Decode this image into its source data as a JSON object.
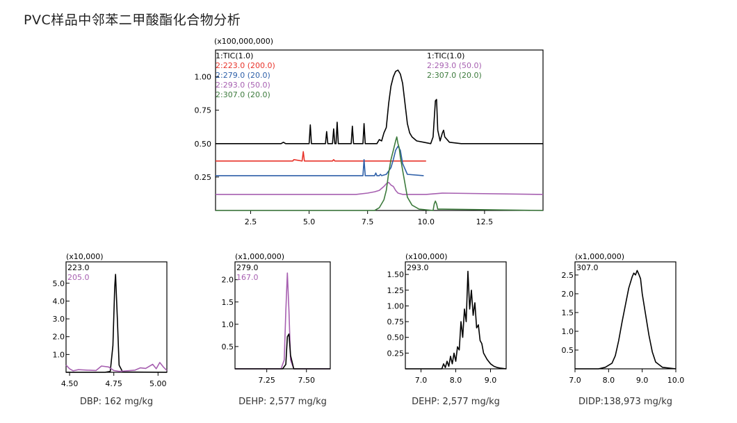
{
  "page_title": "PVC样品中邻苯二甲酸酯化合物分析",
  "colors": {
    "tic": "#000000",
    "m223": "#e8332a",
    "m279": "#2d5fa8",
    "m293": "#a65fb0",
    "m307": "#3c7a3c",
    "m205": "#a65fb0",
    "m167": "#a65fb0"
  },
  "chart_data": [
    {
      "type": "line",
      "id": "main",
      "ylabel_scale": "(x100,000,000)",
      "x_ticks": [
        "2.5",
        "5.0",
        "7.5",
        "10.0",
        "12.5"
      ],
      "y_ticks": [
        "0.25",
        "0.50",
        "0.75",
        "1.00"
      ],
      "xlim": [
        1.0,
        15.0
      ],
      "ylim": [
        0,
        1.2
      ],
      "legend_left": [
        {
          "label": "1:TIC(1.0)",
          "color": "#000000"
        },
        {
          "label": "2:223.0 (200.0)",
          "color": "#e8332a"
        },
        {
          "label": "2:279.0 (20.0)",
          "color": "#2d5fa8"
        },
        {
          "label": "2:293.0 (50.0)",
          "color": "#a65fb0"
        },
        {
          "label": "2:307.0 (20.0)",
          "color": "#3c7a3c"
        }
      ],
      "legend_right": [
        {
          "label": "1:TIC(1.0)",
          "color": "#000000"
        },
        {
          "label": "2:293.0 (50.0)",
          "color": "#a65fb0"
        },
        {
          "label": "2:307.0 (20.0)",
          "color": "#3c7a3c"
        }
      ],
      "series": [
        {
          "name": "1:TIC(1.0)",
          "color": "#000000",
          "x": [
            1.0,
            3.8,
            3.9,
            4.0,
            5.0,
            5.05,
            5.1,
            5.2,
            5.7,
            5.75,
            5.8,
            6.0,
            6.05,
            6.1,
            6.15,
            6.2,
            6.25,
            6.3,
            6.8,
            6.85,
            6.9,
            7.3,
            7.35,
            7.4,
            7.9,
            8.0,
            8.1,
            8.2,
            8.3,
            8.4,
            8.5,
            8.6,
            8.7,
            8.8,
            8.9,
            9.0,
            9.1,
            9.2,
            9.3,
            9.4,
            9.6,
            9.9,
            10.2,
            10.3,
            10.4,
            10.45,
            10.5,
            10.6,
            10.7,
            10.75,
            10.8,
            11.0,
            11.5,
            15.0
          ],
          "y": [
            0.5,
            0.5,
            0.51,
            0.5,
            0.5,
            0.64,
            0.5,
            0.5,
            0.5,
            0.59,
            0.5,
            0.5,
            0.61,
            0.5,
            0.5,
            0.66,
            0.5,
            0.5,
            0.5,
            0.63,
            0.5,
            0.5,
            0.65,
            0.5,
            0.5,
            0.53,
            0.52,
            0.58,
            0.62,
            0.8,
            0.93,
            1.0,
            1.04,
            1.05,
            1.02,
            0.95,
            0.8,
            0.65,
            0.58,
            0.55,
            0.52,
            0.51,
            0.5,
            0.55,
            0.82,
            0.83,
            0.6,
            0.52,
            0.58,
            0.6,
            0.55,
            0.51,
            0.5,
            0.5
          ]
        },
        {
          "name": "2:223.0 (200.0)",
          "color": "#e8332a",
          "x": [
            1.0,
            4.3,
            4.35,
            4.7,
            4.75,
            4.8,
            6.0,
            6.05,
            6.1,
            8.0,
            10.0
          ],
          "y": [
            0.37,
            0.37,
            0.38,
            0.37,
            0.44,
            0.37,
            0.37,
            0.38,
            0.37,
            0.37,
            0.37
          ]
        },
        {
          "name": "2:279.0 (20.0)",
          "color": "#2d5fa8",
          "x": [
            1.0,
            7.3,
            7.35,
            7.4,
            7.8,
            7.85,
            7.9,
            8.0,
            8.05,
            8.1,
            8.3,
            8.5,
            8.6,
            8.7,
            8.8,
            8.9,
            9.0,
            9.2,
            9.9
          ],
          "y": [
            0.26,
            0.26,
            0.38,
            0.26,
            0.26,
            0.28,
            0.26,
            0.26,
            0.27,
            0.26,
            0.27,
            0.32,
            0.38,
            0.45,
            0.48,
            0.45,
            0.35,
            0.27,
            0.26
          ]
        },
        {
          "name": "2:293.0 (50.0)",
          "color": "#a65fb0",
          "x": [
            1.0,
            7.0,
            7.5,
            7.8,
            8.0,
            8.2,
            8.3,
            8.4,
            8.5,
            8.6,
            8.7,
            8.8,
            9.0,
            9.3,
            10.0,
            10.7,
            15.0
          ],
          "y": [
            0.12,
            0.12,
            0.13,
            0.14,
            0.15,
            0.18,
            0.2,
            0.21,
            0.19,
            0.18,
            0.15,
            0.13,
            0.12,
            0.12,
            0.12,
            0.13,
            0.12
          ]
        },
        {
          "name": "2:307.0 (20.0)",
          "color": "#3c7a3c",
          "x": [
            1.0,
            7.8,
            8.0,
            8.2,
            8.3,
            8.4,
            8.5,
            8.6,
            8.7,
            8.75,
            8.8,
            8.85,
            8.9,
            9.0,
            9.1,
            9.2,
            9.4,
            9.7,
            10.3,
            10.35,
            10.4,
            10.45,
            10.5,
            10.7,
            15.0
          ],
          "y": [
            0.0,
            0.0,
            0.02,
            0.08,
            0.15,
            0.28,
            0.38,
            0.45,
            0.52,
            0.55,
            0.5,
            0.47,
            0.4,
            0.3,
            0.2,
            0.1,
            0.04,
            0.01,
            0.0,
            0.05,
            0.07,
            0.05,
            0.01,
            0.01,
            0.0
          ]
        }
      ]
    },
    {
      "type": "line",
      "id": "dbp",
      "ylabel_scale": "(x10,000)",
      "x_ticks": [
        "4.50",
        "4.75",
        "5.00"
      ],
      "y_ticks": [
        "1.0",
        "2.0",
        "3.0",
        "4.0",
        "5.0"
      ],
      "xlim": [
        4.48,
        5.05
      ],
      "ylim": [
        0,
        6.2
      ],
      "legend": [
        {
          "label": "223.0",
          "color": "#000000"
        },
        {
          "label": "205.0",
          "color": "#a65fb0"
        }
      ],
      "caption": "DBP: 162 mg/kg",
      "series": [
        {
          "name": "223.0",
          "color": "#000000",
          "x": [
            4.48,
            4.7,
            4.73,
            4.745,
            4.755,
            4.76,
            4.77,
            4.78,
            4.8,
            5.05
          ],
          "y": [
            0.0,
            0.0,
            0.05,
            1.5,
            4.8,
            5.5,
            3.0,
            0.4,
            0.02,
            0.0
          ]
        },
        {
          "name": "205.0",
          "color": "#a65fb0",
          "x": [
            4.48,
            4.5,
            4.52,
            4.55,
            4.6,
            4.65,
            4.68,
            4.72,
            4.75,
            4.78,
            4.82,
            4.87,
            4.9,
            4.93,
            4.97,
            4.99,
            5.01,
            5.03,
            5.05
          ],
          "y": [
            0.4,
            0.2,
            0.08,
            0.15,
            0.12,
            0.1,
            0.35,
            0.3,
            0.1,
            0.05,
            0.08,
            0.12,
            0.25,
            0.22,
            0.45,
            0.2,
            0.55,
            0.3,
            0.1
          ]
        }
      ]
    },
    {
      "type": "line",
      "id": "dehp1",
      "ylabel_scale": "(x1,000,000)",
      "x_ticks": [
        "7.25",
        "7.50"
      ],
      "y_ticks": [
        "0.5",
        "1.0",
        "1.5",
        "2.0"
      ],
      "xlim": [
        7.05,
        7.65
      ],
      "ylim": [
        0,
        2.4
      ],
      "legend": [
        {
          "label": "279.0",
          "color": "#000000"
        },
        {
          "label": "167.0",
          "color": "#a65fb0"
        }
      ],
      "caption": "DEHP: 2,577 mg/kg",
      "series": [
        {
          "name": "167.0",
          "color": "#a65fb0",
          "x": [
            7.05,
            7.34,
            7.36,
            7.37,
            7.38,
            7.39,
            7.4,
            7.42,
            7.65
          ],
          "y": [
            0.0,
            0.0,
            0.2,
            1.3,
            2.15,
            1.3,
            0.2,
            0.0,
            0.0
          ]
        },
        {
          "name": "279.0",
          "color": "#000000",
          "x": [
            7.05,
            7.35,
            7.37,
            7.38,
            7.39,
            7.4,
            7.42,
            7.65
          ],
          "y": [
            0.0,
            0.0,
            0.1,
            0.72,
            0.78,
            0.3,
            0.0,
            0.0
          ]
        }
      ]
    },
    {
      "type": "line",
      "id": "dehp2",
      "ylabel_scale": "(x100,000)",
      "x_ticks": [
        "7.0",
        "8.0",
        "9.0"
      ],
      "y_ticks": [
        "0.25",
        "0.50",
        "0.75",
        "1.00",
        "1.25",
        "1.50"
      ],
      "xlim": [
        6.55,
        9.45
      ],
      "ylim": [
        0,
        1.7
      ],
      "legend": [
        {
          "label": "293.0",
          "color": "#000000"
        }
      ],
      "caption": "DEHP: 2,577 mg/kg",
      "series": [
        {
          "name": "293.0",
          "color": "#000000",
          "x": [
            6.55,
            7.6,
            7.65,
            7.7,
            7.75,
            7.8,
            7.85,
            7.9,
            7.95,
            8.0,
            8.05,
            8.1,
            8.15,
            8.2,
            8.25,
            8.3,
            8.35,
            8.4,
            8.45,
            8.5,
            8.55,
            8.6,
            8.65,
            8.7,
            8.75,
            8.8,
            8.9,
            9.0,
            9.1,
            9.2,
            9.3,
            9.45
          ],
          "y": [
            0.0,
            0.0,
            0.08,
            0.02,
            0.12,
            0.04,
            0.2,
            0.08,
            0.25,
            0.12,
            0.35,
            0.3,
            0.75,
            0.5,
            0.95,
            0.75,
            1.55,
            0.95,
            1.25,
            0.85,
            1.05,
            0.65,
            0.7,
            0.45,
            0.4,
            0.25,
            0.15,
            0.08,
            0.04,
            0.02,
            0.01,
            0.0
          ]
        }
      ]
    },
    {
      "type": "line",
      "id": "didp",
      "ylabel_scale": "(x1,000,000)",
      "x_ticks": [
        "7.0",
        "8.0",
        "9.0",
        "10.0"
      ],
      "y_ticks": [
        "0.5",
        "1.0",
        "1.5",
        "2.0",
        "2.5"
      ],
      "xlim": [
        7.0,
        10.0
      ],
      "ylim": [
        0,
        2.85
      ],
      "legend": [
        {
          "label": "307.0",
          "color": "#000000"
        }
      ],
      "caption": "DIDP:138,973 mg/kg",
      "series": [
        {
          "name": "307.0",
          "color": "#000000",
          "x": [
            7.0,
            7.7,
            7.9,
            8.1,
            8.2,
            8.3,
            8.4,
            8.5,
            8.6,
            8.7,
            8.75,
            8.8,
            8.85,
            8.9,
            8.95,
            9.0,
            9.1,
            9.2,
            9.3,
            9.4,
            9.6,
            10.0
          ],
          "y": [
            0.0,
            0.0,
            0.04,
            0.15,
            0.35,
            0.75,
            1.25,
            1.7,
            2.15,
            2.45,
            2.55,
            2.5,
            2.62,
            2.52,
            2.4,
            2.0,
            1.45,
            0.9,
            0.45,
            0.18,
            0.04,
            0.0
          ]
        }
      ]
    }
  ]
}
